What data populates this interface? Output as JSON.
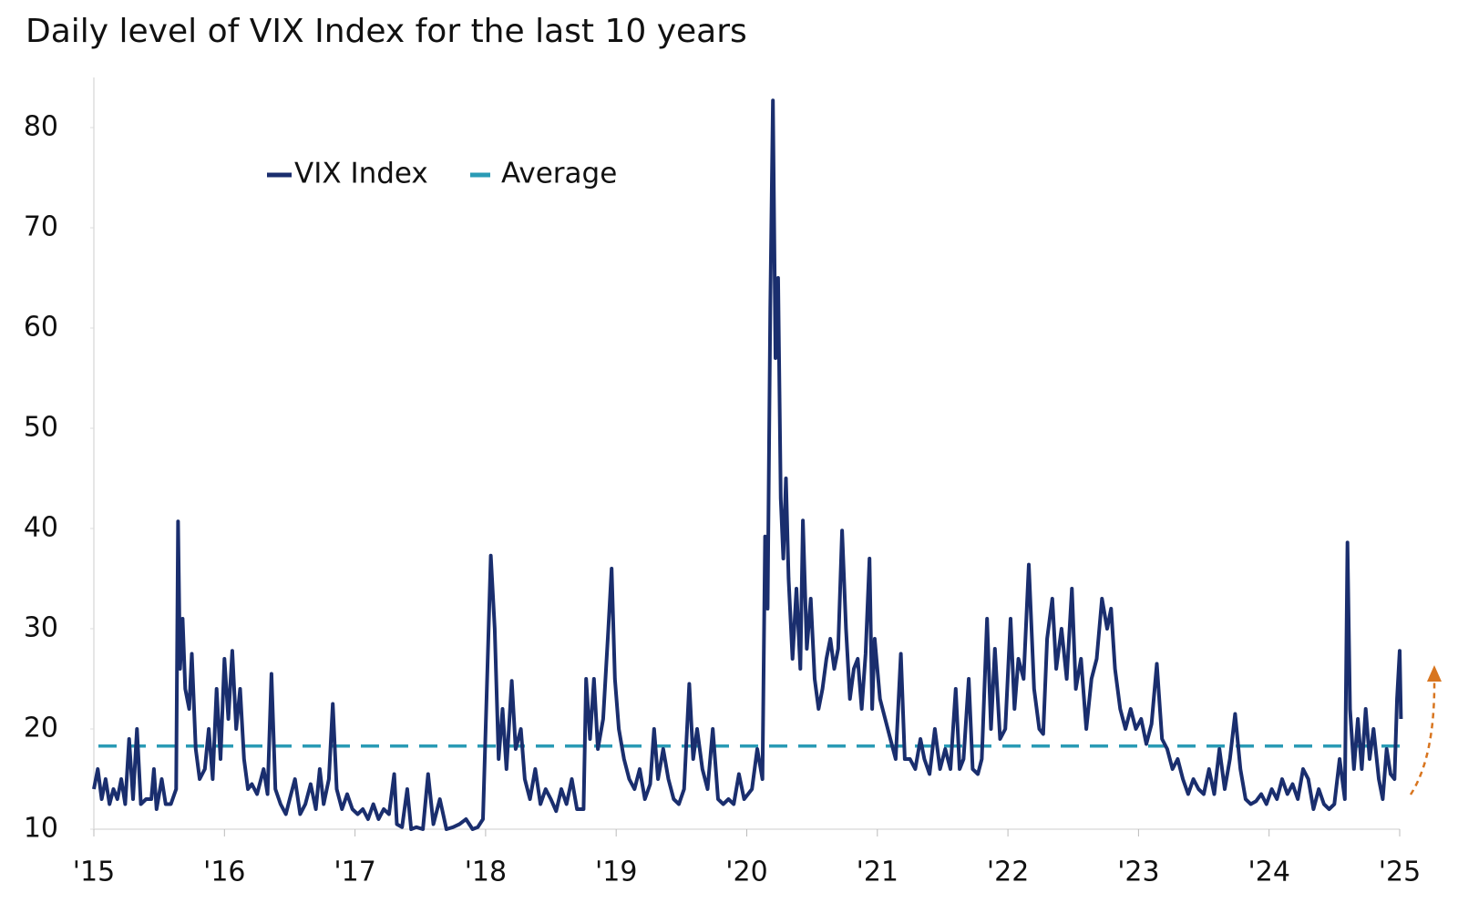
{
  "chart_data": {
    "type": "line",
    "title": "Daily level of VIX Index for the last 10 years",
    "x": [
      2015.0,
      2015.03,
      2015.06,
      2015.09,
      2015.12,
      2015.15,
      2015.18,
      2015.21,
      2015.24,
      2015.27,
      2015.3,
      2015.33,
      2015.36,
      2015.4,
      2015.44,
      2015.46,
      2015.48,
      2015.52,
      2015.55,
      2015.59,
      2015.63,
      2015.645,
      2015.66,
      2015.68,
      2015.7,
      2015.73,
      2015.75,
      2015.78,
      2015.81,
      2015.85,
      2015.88,
      2015.91,
      2015.94,
      2015.97,
      2016.0,
      2016.03,
      2016.06,
      2016.09,
      2016.12,
      2016.15,
      2016.18,
      2016.21,
      2016.25,
      2016.3,
      2016.33,
      2016.36,
      2016.39,
      2016.43,
      2016.47,
      2016.5,
      2016.54,
      2016.58,
      2016.62,
      2016.66,
      2016.7,
      2016.73,
      2016.76,
      2016.8,
      2016.83,
      2016.86,
      2016.9,
      2016.94,
      2016.98,
      2017.02,
      2017.06,
      2017.1,
      2017.14,
      2017.18,
      2017.22,
      2017.26,
      2017.3,
      2017.32,
      2017.36,
      2017.4,
      2017.43,
      2017.47,
      2017.52,
      2017.56,
      2017.6,
      2017.65,
      2017.7,
      2017.75,
      2017.8,
      2017.85,
      2017.9,
      2017.94,
      2017.98,
      2018.04,
      2018.07,
      2018.1,
      2018.13,
      2018.16,
      2018.2,
      2018.23,
      2018.27,
      2018.3,
      2018.34,
      2018.38,
      2018.42,
      2018.46,
      2018.5,
      2018.54,
      2018.58,
      2018.62,
      2018.66,
      2018.7,
      2018.75,
      2018.77,
      2018.8,
      2018.83,
      2018.86,
      2018.9,
      2018.94,
      2018.965,
      2018.99,
      2019.02,
      2019.06,
      2019.1,
      2019.14,
      2019.18,
      2019.22,
      2019.26,
      2019.29,
      2019.32,
      2019.36,
      2019.4,
      2019.44,
      2019.48,
      2019.52,
      2019.56,
      2019.59,
      2019.62,
      2019.66,
      2019.7,
      2019.74,
      2019.78,
      2019.82,
      2019.86,
      2019.9,
      2019.94,
      2019.98,
      2020.04,
      2020.08,
      2020.12,
      2020.14,
      2020.16,
      2020.18,
      2020.2,
      2020.22,
      2020.24,
      2020.26,
      2020.28,
      2020.3,
      2020.32,
      2020.35,
      2020.38,
      2020.41,
      2020.43,
      2020.46,
      2020.49,
      2020.52,
      2020.55,
      2020.58,
      2020.61,
      2020.64,
      2020.67,
      2020.7,
      2020.73,
      2020.76,
      2020.79,
      2020.82,
      2020.85,
      2020.88,
      2020.91,
      2020.94,
      2020.96,
      2020.98,
      2021.02,
      2021.06,
      2021.1,
      2021.14,
      2021.18,
      2021.21,
      2021.25,
      2021.29,
      2021.33,
      2021.36,
      2021.4,
      2021.44,
      2021.48,
      2021.52,
      2021.56,
      2021.6,
      2021.63,
      2021.66,
      2021.7,
      2021.73,
      2021.77,
      2021.8,
      2021.84,
      2021.87,
      2021.9,
      2021.94,
      2021.98,
      2022.02,
      2022.05,
      2022.08,
      2022.12,
      2022.16,
      2022.2,
      2022.24,
      2022.27,
      2022.3,
      2022.34,
      2022.37,
      2022.41,
      2022.45,
      2022.49,
      2022.52,
      2022.56,
      2022.6,
      2022.64,
      2022.68,
      2022.72,
      2022.76,
      2022.79,
      2022.82,
      2022.86,
      2022.9,
      2022.94,
      2022.98,
      2023.02,
      2023.06,
      2023.1,
      2023.14,
      2023.18,
      2023.22,
      2023.26,
      2023.3,
      2023.34,
      2023.38,
      2023.42,
      2023.46,
      2023.5,
      2023.54,
      2023.58,
      2023.62,
      2023.66,
      2023.7,
      2023.74,
      2023.78,
      2023.82,
      2023.86,
      2023.9,
      2023.94,
      2023.98,
      2024.02,
      2024.06,
      2024.1,
      2024.14,
      2024.18,
      2024.22,
      2024.26,
      2024.3,
      2024.34,
      2024.38,
      2024.42,
      2024.46,
      2024.5,
      2024.54,
      2024.58,
      2024.6,
      2024.62,
      2024.65,
      2024.68,
      2024.71,
      2024.74,
      2024.77,
      2024.8,
      2024.84,
      2024.87,
      2024.9,
      2024.93,
      2024.96,
      2024.98,
      2025.0,
      2025.01
    ],
    "series": [
      {
        "name": "VIX Index",
        "color": "#1a2e6e",
        "values": [
          14,
          16,
          13,
          15,
          12.5,
          14,
          13,
          15,
          12.5,
          19,
          13,
          20,
          12.5,
          13,
          13,
          16,
          12,
          15,
          12.5,
          12.5,
          14,
          40.7,
          26,
          31,
          24,
          22,
          27.5,
          18,
          15,
          16,
          20,
          15,
          24,
          17,
          27,
          21,
          27.8,
          20,
          24,
          17,
          14,
          14.5,
          13.5,
          16,
          13.5,
          25.5,
          14,
          12.5,
          11.5,
          13,
          15,
          11.5,
          12.5,
          14.5,
          12,
          16,
          12.5,
          15,
          22.5,
          14,
          12,
          13.5,
          12,
          11.5,
          12,
          11,
          12.5,
          11,
          12,
          11.5,
          15.5,
          10.5,
          10.2,
          14,
          10,
          10.2,
          10,
          15.5,
          10.5,
          13,
          10,
          10.2,
          10.5,
          11,
          10,
          10.2,
          11,
          37.3,
          30,
          17,
          22,
          16,
          24.8,
          18,
          20,
          15,
          13,
          16,
          12.5,
          14,
          13,
          11.8,
          14,
          12.5,
          15,
          12,
          12,
          25,
          19,
          25,
          18,
          21,
          30,
          36,
          25,
          20,
          17,
          15,
          14,
          16,
          13,
          14.5,
          20,
          15,
          18,
          15,
          13,
          12.5,
          14,
          24.5,
          17,
          20,
          16,
          14,
          20,
          13,
          12.5,
          13,
          12.5,
          15.5,
          13,
          14,
          18,
          15,
          39.2,
          32,
          62,
          82.7,
          57,
          65,
          43,
          37,
          45,
          35,
          27,
          34,
          26,
          40.8,
          28,
          33,
          25,
          22,
          24,
          27,
          29,
          26,
          28,
          39.8,
          30,
          23,
          26,
          27,
          22,
          27.5,
          37,
          22,
          29,
          23,
          21,
          19,
          17,
          27.5,
          17,
          17,
          16,
          19,
          17,
          15.5,
          20,
          16,
          18,
          16,
          24,
          16,
          17,
          25,
          16,
          15.5,
          17,
          31,
          20,
          28,
          19,
          20,
          31,
          22,
          27,
          25,
          36.4,
          24,
          20,
          19.5,
          29,
          33,
          26,
          30,
          25,
          34,
          24,
          27,
          20,
          25,
          27,
          33,
          30,
          32,
          26,
          22,
          20,
          22,
          20,
          21,
          18.5,
          20.5,
          26.5,
          19,
          18,
          16,
          17,
          15,
          13.5,
          15,
          14,
          13.5,
          16,
          13.5,
          18,
          14,
          17,
          21.5,
          16,
          13,
          12.5,
          12.8,
          13.5,
          12.5,
          14,
          13,
          15,
          13.5,
          14.5,
          13,
          16,
          15,
          12,
          14,
          12.5,
          12,
          12.5,
          17,
          13,
          38.6,
          22,
          16,
          21,
          16,
          22,
          17,
          20,
          15,
          13,
          18,
          15.5,
          15,
          23,
          27.8,
          21
        ]
      }
    ],
    "average": {
      "name": "Average",
      "color": "#2a9bb5",
      "value": 18.3
    },
    "xlim": [
      2015,
      2025
    ],
    "ylim": [
      10,
      85
    ],
    "xticks": [
      {
        "value": 2015,
        "label": "'15"
      },
      {
        "value": 2016,
        "label": "'16"
      },
      {
        "value": 2017,
        "label": "'17"
      },
      {
        "value": 2018,
        "label": "'18"
      },
      {
        "value": 2019,
        "label": "'19"
      },
      {
        "value": 2020,
        "label": "'20"
      },
      {
        "value": 2021,
        "label": "'21"
      },
      {
        "value": 2022,
        "label": "'22"
      },
      {
        "value": 2023,
        "label": "'23"
      },
      {
        "value": 2024,
        "label": "'24"
      },
      {
        "value": 2025,
        "label": "'25"
      }
    ],
    "yticks": [
      10,
      20,
      30,
      40,
      50,
      60,
      70,
      80
    ]
  }
}
